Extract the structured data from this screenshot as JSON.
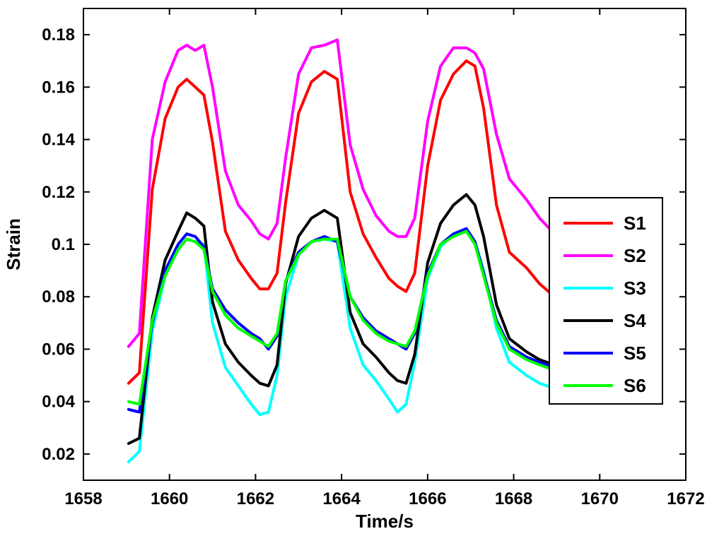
{
  "chart_data": {
    "type": "line",
    "title": "",
    "xlabel": "Time/s",
    "ylabel": "Strain",
    "xlim": [
      1658,
      1672
    ],
    "ylim": [
      0.01,
      0.19
    ],
    "xticks": [
      1658,
      1660,
      1662,
      1664,
      1666,
      1668,
      1670,
      1672
    ],
    "yticks": [
      0.02,
      0.04,
      0.06,
      0.08,
      0.1,
      0.12,
      0.14,
      0.16,
      0.18
    ],
    "ytick_labels": [
      "0.02",
      "0.04",
      "0.06",
      "0.08",
      "0.1",
      "0.12",
      "0.14",
      "0.16",
      "0.18"
    ],
    "grid": false,
    "legend_position": "right",
    "x": [
      1659.05,
      1659.3,
      1659.6,
      1659.9,
      1660.2,
      1660.4,
      1660.6,
      1660.8,
      1661.0,
      1661.3,
      1661.6,
      1661.9,
      1662.1,
      1662.3,
      1662.5,
      1662.7,
      1663.0,
      1663.3,
      1663.6,
      1663.9,
      1664.2,
      1664.5,
      1664.8,
      1665.1,
      1665.3,
      1665.5,
      1665.7,
      1666.0,
      1666.3,
      1666.6,
      1666.9,
      1667.1,
      1667.3,
      1667.6,
      1667.9,
      1668.3,
      1668.6,
      1668.95
    ],
    "series": [
      {
        "name": "S1",
        "color": "#ff0000",
        "values": [
          0.047,
          0.051,
          0.121,
          0.148,
          0.16,
          0.163,
          0.16,
          0.157,
          0.139,
          0.105,
          0.094,
          0.087,
          0.083,
          0.083,
          0.089,
          0.116,
          0.15,
          0.162,
          0.166,
          0.163,
          0.12,
          0.104,
          0.095,
          0.087,
          0.084,
          0.082,
          0.089,
          0.13,
          0.155,
          0.165,
          0.17,
          0.168,
          0.152,
          0.115,
          0.097,
          0.091,
          0.085,
          0.08
        ]
      },
      {
        "name": "S2",
        "color": "#ff00ff",
        "values": [
          0.061,
          0.066,
          0.14,
          0.162,
          0.174,
          0.176,
          0.174,
          0.176,
          0.16,
          0.128,
          0.115,
          0.109,
          0.104,
          0.102,
          0.108,
          0.133,
          0.165,
          0.175,
          0.176,
          0.178,
          0.138,
          0.121,
          0.111,
          0.105,
          0.103,
          0.103,
          0.11,
          0.147,
          0.168,
          0.175,
          0.175,
          0.173,
          0.167,
          0.142,
          0.125,
          0.117,
          0.11,
          0.104
        ]
      },
      {
        "name": "S3",
        "color": "#00ffff",
        "values": [
          0.017,
          0.021,
          0.067,
          0.088,
          0.098,
          0.102,
          0.101,
          0.1,
          0.07,
          0.053,
          0.046,
          0.039,
          0.035,
          0.036,
          0.05,
          0.08,
          0.096,
          0.101,
          0.102,
          0.101,
          0.068,
          0.054,
          0.048,
          0.041,
          0.036,
          0.039,
          0.055,
          0.087,
          0.099,
          0.104,
          0.106,
          0.101,
          0.09,
          0.068,
          0.055,
          0.05,
          0.047,
          0.045
        ]
      },
      {
        "name": "S4",
        "color": "#000000",
        "values": [
          0.024,
          0.026,
          0.072,
          0.094,
          0.105,
          0.112,
          0.11,
          0.107,
          0.078,
          0.062,
          0.055,
          0.05,
          0.047,
          0.046,
          0.054,
          0.085,
          0.103,
          0.11,
          0.113,
          0.11,
          0.074,
          0.062,
          0.057,
          0.051,
          0.048,
          0.047,
          0.058,
          0.093,
          0.108,
          0.115,
          0.119,
          0.115,
          0.103,
          0.077,
          0.064,
          0.059,
          0.056,
          0.054
        ]
      },
      {
        "name": "S5",
        "color": "#0000ff",
        "values": [
          0.037,
          0.036,
          0.07,
          0.09,
          0.1,
          0.104,
          0.103,
          0.099,
          0.083,
          0.075,
          0.07,
          0.066,
          0.064,
          0.06,
          0.065,
          0.086,
          0.097,
          0.101,
          0.103,
          0.101,
          0.08,
          0.072,
          0.067,
          0.064,
          0.062,
          0.06,
          0.066,
          0.089,
          0.1,
          0.104,
          0.106,
          0.101,
          0.089,
          0.071,
          0.061,
          0.057,
          0.055,
          0.053
        ]
      },
      {
        "name": "S6",
        "color": "#00ff00",
        "values": [
          0.04,
          0.039,
          0.071,
          0.088,
          0.098,
          0.102,
          0.101,
          0.098,
          0.082,
          0.073,
          0.068,
          0.065,
          0.063,
          0.061,
          0.066,
          0.086,
          0.096,
          0.101,
          0.102,
          0.102,
          0.08,
          0.071,
          0.066,
          0.063,
          0.062,
          0.061,
          0.067,
          0.088,
          0.1,
          0.103,
          0.105,
          0.1,
          0.088,
          0.07,
          0.06,
          0.056,
          0.054,
          0.052
        ]
      }
    ]
  }
}
